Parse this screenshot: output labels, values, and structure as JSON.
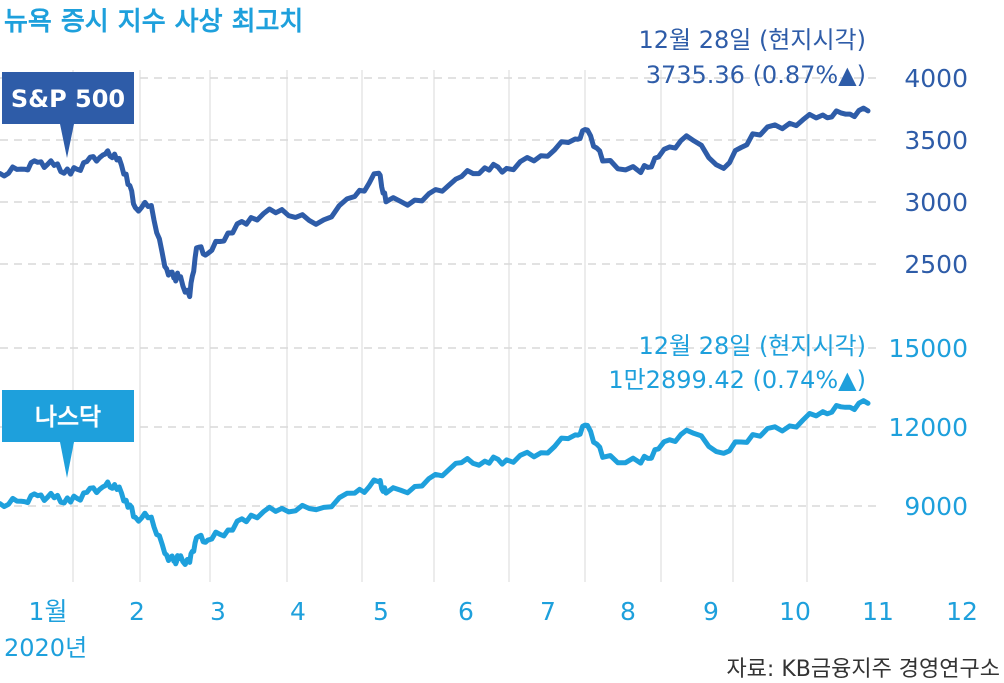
{
  "title": "뉴욕 증시 지수 사상 최고치",
  "source": "자료: KB금융지주 경영연구소",
  "year_label": "2020년",
  "colors": {
    "sp500": "#2e5ca8",
    "nasdaq": "#1ea0dc",
    "title": "#1ea0dc",
    "grid": "#d9d9d9",
    "axis_text": "#1ea0dc"
  },
  "chart_data": [
    {
      "type": "line",
      "series": [
        {
          "name": "S&P 500",
          "x": [
            "01/01",
            "01/10",
            "01/17",
            "01/24",
            "01/31",
            "02/07",
            "02/14",
            "02/19",
            "02/24",
            "02/28",
            "03/06",
            "03/12",
            "03/16",
            "03/18",
            "03/23",
            "03/26",
            "03/31",
            "04/08",
            "04/17",
            "04/29",
            "05/13",
            "05/29",
            "06/08",
            "06/11",
            "06/26",
            "07/10",
            "07/22",
            "07/31",
            "08/14",
            "08/28",
            "09/02",
            "09/08",
            "09/23",
            "09/30",
            "10/12",
            "10/28",
            "11/09",
            "11/24",
            "12/08",
            "12/18",
            "12/28"
          ],
          "values": [
            3230,
            3265,
            3320,
            3295,
            3225,
            3327,
            3380,
            3386,
            3225,
            2954,
            2972,
            2480,
            2386,
            2398,
            2237,
            2630,
            2584,
            2750,
            2874,
            2939,
            2820,
            3044,
            3232,
            3002,
            3009,
            3185,
            3276,
            3271,
            3373,
            3508,
            3580,
            3331,
            3237,
            3363,
            3534,
            3271,
            3550,
            3635,
            3702,
            3709,
            3735
          ]
        }
      ],
      "callout": {
        "date": "12월 28일 (현지시각)",
        "value": "3735.36 (0.87%",
        "arrow": "▲)"
      },
      "ylim": [
        2250,
        4100
      ],
      "yticks": [
        "4000",
        "3500",
        "3000",
        "2500"
      ],
      "ytick_values": [
        4000,
        3500,
        3000,
        2500
      ],
      "grid": true
    },
    {
      "type": "line",
      "series": [
        {
          "name": "나스닥",
          "x": [
            "01/01",
            "01/10",
            "01/17",
            "01/24",
            "01/31",
            "02/07",
            "02/14",
            "02/19",
            "02/24",
            "02/28",
            "03/06",
            "03/12",
            "03/16",
            "03/18",
            "03/23",
            "03/26",
            "03/31",
            "04/08",
            "04/17",
            "04/29",
            "05/13",
            "05/29",
            "06/08",
            "06/11",
            "06/26",
            "07/10",
            "07/22",
            "07/31",
            "08/14",
            "08/28",
            "09/02",
            "09/08",
            "09/23",
            "09/30",
            "10/12",
            "10/28",
            "11/09",
            "11/24",
            "12/08",
            "12/18",
            "12/28"
          ],
          "values": [
            9090,
            9180,
            9390,
            9310,
            9150,
            9520,
            9730,
            9817,
            9220,
            8570,
            8575,
            7200,
            6900,
            6990,
            6860,
            7800,
            7700,
            8090,
            8650,
            8910,
            8860,
            9490,
            9920,
            9490,
            9760,
            10620,
            10700,
            10750,
            11020,
            11700,
            12056,
            10850,
            10630,
            11170,
            11880,
            11000,
            11710,
            12040,
            12580,
            12750,
            12899
          ]
        }
      ],
      "callout": {
        "date": "12월 28일 (현지시각)",
        "value": "1만2899.42 (0.74%",
        "arrow": "▲)"
      },
      "ylim": [
        6400,
        16000
      ],
      "yticks": [
        "15000",
        "12000",
        "9000"
      ],
      "ytick_values": [
        15000,
        12000,
        9000
      ],
      "grid": true
    }
  ],
  "xaxis": {
    "tick_labels": [
      "1월",
      "2",
      "3",
      "4",
      "5",
      "6",
      "7",
      "8",
      "9",
      "10",
      "11",
      "12"
    ]
  }
}
